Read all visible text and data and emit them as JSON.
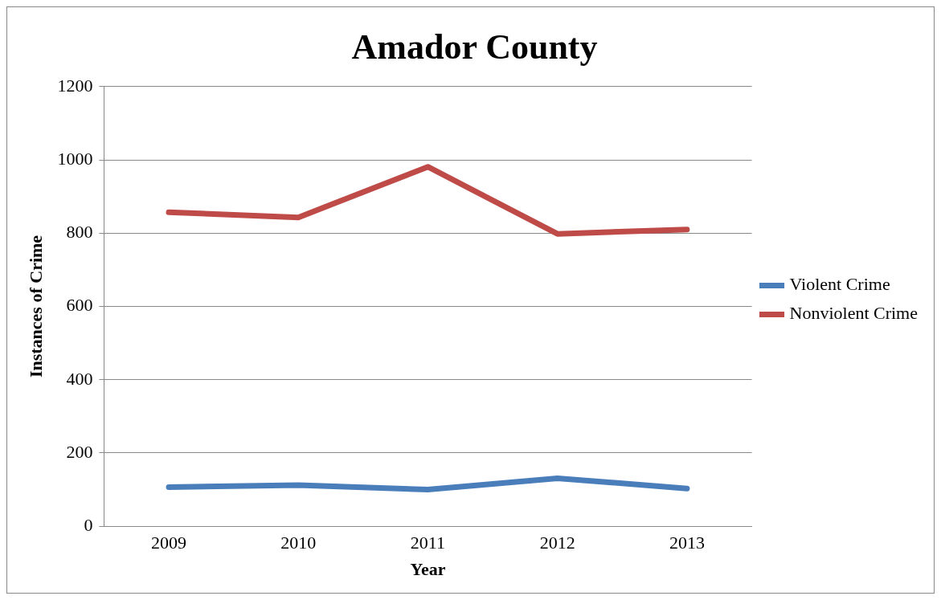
{
  "chart_data": {
    "type": "line",
    "title": "Amador County",
    "xlabel": "Year",
    "ylabel": "Instances of Crime",
    "categories": [
      "2009",
      "2010",
      "2011",
      "2012",
      "2013"
    ],
    "series": [
      {
        "name": "Violent Crime",
        "color": "#4a7ebb",
        "values": [
          107,
          112,
          100,
          131,
          103
        ]
      },
      {
        "name": "Nonviolent Crime",
        "color": "#be4b48",
        "values": [
          857,
          843,
          981,
          798,
          810
        ]
      }
    ],
    "ylim": [
      0,
      1200
    ],
    "yticks": [
      0,
      200,
      400,
      600,
      800,
      1000,
      1200
    ],
    "grid": "y",
    "legend": "right",
    "marker": "none",
    "line_style": "solid"
  }
}
